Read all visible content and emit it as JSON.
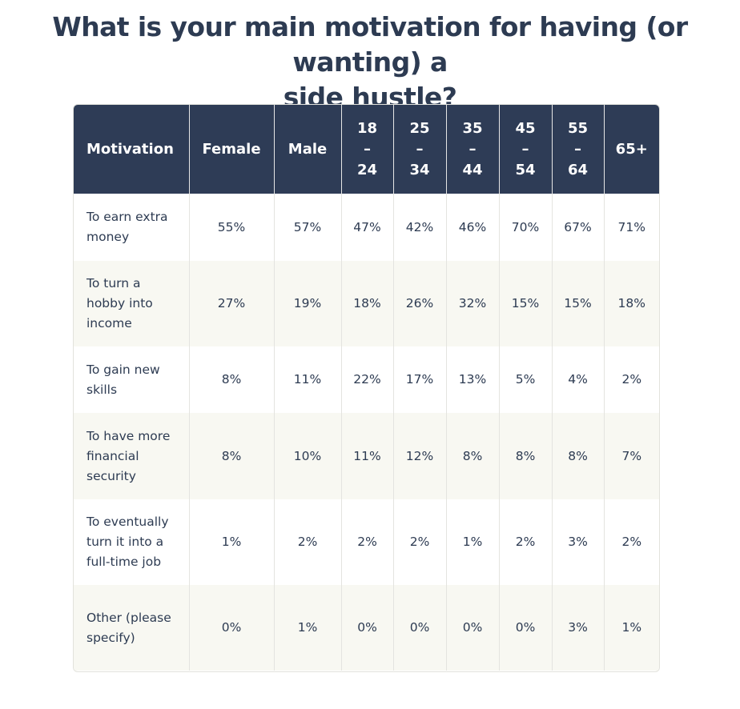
{
  "title_line1": "What is your main motivation for having (or wanting) a",
  "title_line2": "side hustle?",
  "chart_data": {
    "type": "table",
    "title": "What is your main motivation for having (or wanting) a side hustle?",
    "columns": [
      {
        "lines": [
          "Motivation"
        ]
      },
      {
        "lines": [
          "Female"
        ]
      },
      {
        "lines": [
          "Male"
        ]
      },
      {
        "lines": [
          "18",
          "–",
          "24"
        ]
      },
      {
        "lines": [
          "25",
          "–",
          "34"
        ]
      },
      {
        "lines": [
          "35",
          "–",
          "44"
        ]
      },
      {
        "lines": [
          "45",
          "–",
          "54"
        ]
      },
      {
        "lines": [
          "55",
          "–",
          "64"
        ]
      },
      {
        "lines": [
          "65+"
        ]
      }
    ],
    "rows": [
      {
        "label": "To earn extra money",
        "values": [
          "55%",
          "57%",
          "47%",
          "42%",
          "46%",
          "70%",
          "67%",
          "71%"
        ]
      },
      {
        "label": "To turn a hobby into income",
        "values": [
          "27%",
          "19%",
          "18%",
          "26%",
          "32%",
          "15%",
          "15%",
          "18%"
        ]
      },
      {
        "label": "To gain new skills",
        "values": [
          "8%",
          "11%",
          "22%",
          "17%",
          "13%",
          "5%",
          "4%",
          "2%"
        ]
      },
      {
        "label": "To have more financial security",
        "values": [
          "8%",
          "10%",
          "11%",
          "12%",
          "8%",
          "8%",
          "8%",
          "7%"
        ]
      },
      {
        "label": "To eventually turn it into a full-time job",
        "values": [
          "1%",
          "2%",
          "2%",
          "2%",
          "1%",
          "2%",
          "3%",
          "2%"
        ]
      },
      {
        "label": "Other (please specify)",
        "values": [
          "0%",
          "1%",
          "0%",
          "0%",
          "0%",
          "0%",
          "3%",
          "1%"
        ]
      }
    ]
  },
  "colors": {
    "header_bg": "#2e3c56",
    "header_text": "#ffffff",
    "title_text": "#2d3b52",
    "row_alt_bg": "#f8f8f2"
  }
}
